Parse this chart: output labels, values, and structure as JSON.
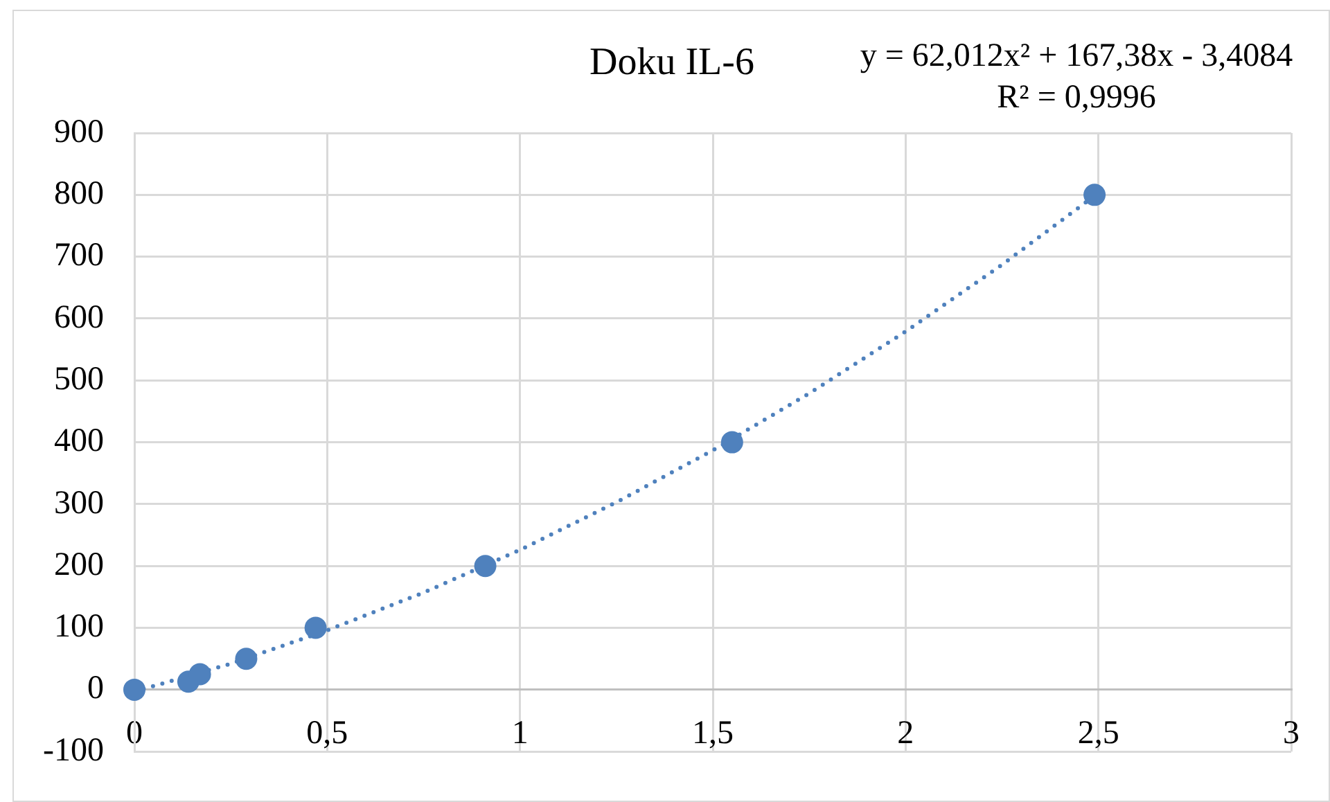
{
  "chart_data": {
    "type": "scatter",
    "title": "Doku IL-6",
    "annotations": [
      "y = 62,012x² + 167,38x - 3,4084",
      "R² = 0,9996"
    ],
    "x": [
      0,
      0.14,
      0.17,
      0.29,
      0.47,
      0.91,
      1.55,
      2.49
    ],
    "series": [
      {
        "color": "#4f81bd",
        "values": [
          0,
          13,
          25,
          50,
          100,
          200,
          400,
          800
        ]
      },
      {
        "type": "line",
        "color": "#4f81bd",
        "x": [
          0,
          0.25,
          0.5,
          0.75,
          1,
          1.25,
          1.5,
          1.75,
          2,
          2.25,
          2.5
        ],
        "values": [
          -3,
          42,
          96,
          157,
          226,
          303,
          387,
          479,
          579,
          687,
          803
        ],
        "marker": "none",
        "line_style": "dotted"
      }
    ],
    "xlim": [
      0,
      3
    ],
    "xticks": [
      0,
      {
        "value": 0.5,
        "label": "0,5"
      },
      1,
      {
        "value": 1.5,
        "label": "1,5"
      },
      2,
      {
        "value": 2.5,
        "label": "2,5"
      },
      3
    ],
    "ylim": [
      -100,
      900
    ],
    "yticks": [
      -100,
      0,
      100,
      200,
      300,
      400,
      500,
      600,
      700,
      800,
      900
    ],
    "grid": true,
    "legend": false,
    "marker": "circle"
  }
}
